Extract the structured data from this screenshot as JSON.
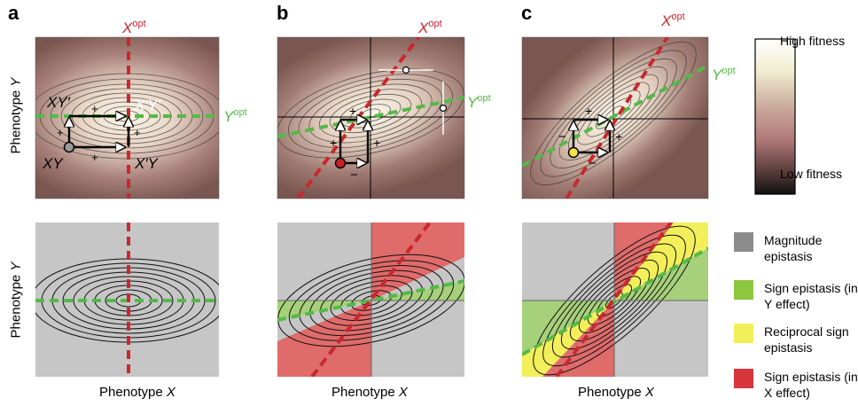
{
  "panel_labels": [
    "a",
    "b",
    "c"
  ],
  "axes": {
    "y_label_prefix": "Phenotype ",
    "y_label_var": "Y",
    "x_label_prefix": "Phenotype ",
    "x_label_var": "X"
  },
  "optima": {
    "x_opt_base": "X",
    "x_opt_sup": "opt",
    "y_opt_base": "Y",
    "y_opt_sup": "opt"
  },
  "genotypes": {
    "xy": "XY",
    "xy_prime": "XY′",
    "xprime_y": "X′Y",
    "xprime_yprime": "X′Y′"
  },
  "signs": {
    "plus": "+",
    "minus": "−"
  },
  "colorbar": {
    "high_label": "High fitness",
    "low_label": "Low fitness",
    "high_color": "#fbf9ee",
    "mid_color": "#b87e7e",
    "low_color": "#111111"
  },
  "legend": [
    {
      "label": "Magnitude epistasis",
      "color": "#8c8c8c"
    },
    {
      "label": "Sign epistasis (in Y effect)",
      "color": "#8dc63f"
    },
    {
      "label": "Reciprocal sign epistasis",
      "color": "#f3ef5a"
    },
    {
      "label": "Sign epistasis (in X effect)",
      "color": "#d7343c"
    }
  ],
  "colors": {
    "x_opt_line": "#c8282e",
    "y_opt_line": "#54b948",
    "background_grey": "#c6c6c6",
    "landscape_low": "#7a5650",
    "landscape_high": "#fbf8ea",
    "marker_a": "#9a9a9a",
    "marker_b": "#cc1f25",
    "marker_c": "#f2e34a"
  }
}
